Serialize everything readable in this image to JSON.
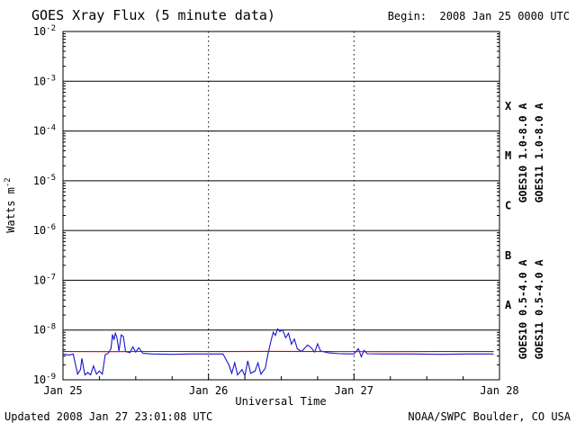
{
  "footer": {
    "updated": "Updated 2008 Jan 27 23:01:08 UTC",
    "source": "NOAA/SWPC Boulder, CO USA"
  },
  "chart_data": {
    "type": "line",
    "title": "GOES Xray Flux (5 minute data)",
    "begin_label": "Begin:  2008 Jan 25 0000 UTC",
    "xlabel": "Universal Time",
    "ylabel_base": "Watts m",
    "ylabel_exp": "-2",
    "x_range": [
      0,
      3
    ],
    "y_log_range": [
      -2,
      -9
    ],
    "x_ticks": [
      {
        "t": 0,
        "label": "Jan 25"
      },
      {
        "t": 1,
        "label": "Jan 26"
      },
      {
        "t": 2,
        "label": "Jan 27"
      },
      {
        "t": 3,
        "label": "Jan 28"
      }
    ],
    "y_ticks": [
      -2,
      -3,
      -4,
      -5,
      -6,
      -7,
      -8,
      -9
    ],
    "flare_classes": [
      {
        "label": "X",
        "log_center": -3.5
      },
      {
        "label": "M",
        "log_center": -4.5
      },
      {
        "label": "C",
        "log_center": -5.5
      },
      {
        "label": "B",
        "log_center": -6.5
      },
      {
        "label": "A",
        "log_center": -7.5
      }
    ],
    "grid": {
      "horizontal": "solid lines at each decade",
      "vertical": "dotted lines at day boundaries"
    },
    "series": [
      {
        "id": "goes10-long",
        "name": "GOES10 1.0-8.0 A",
        "color": "#1616c8",
        "points": [
          [
            0.0,
            3.3e-09
          ],
          [
            0.04,
            3.15e-09
          ],
          [
            0.07,
            3.3e-09
          ],
          [
            0.09,
            1.8e-09
          ],
          [
            0.1,
            1.3e-09
          ],
          [
            0.12,
            1.6e-09
          ],
          [
            0.13,
            2.7e-09
          ],
          [
            0.15,
            1.25e-09
          ],
          [
            0.17,
            1.4e-09
          ],
          [
            0.19,
            1.25e-09
          ],
          [
            0.21,
            1.9e-09
          ],
          [
            0.23,
            1.3e-09
          ],
          [
            0.25,
            1.5e-09
          ],
          [
            0.27,
            1.3e-09
          ],
          [
            0.29,
            3.2e-09
          ],
          [
            0.31,
            3.4e-09
          ],
          [
            0.33,
            4.2e-09
          ],
          [
            0.34,
            8.2e-09
          ],
          [
            0.35,
            6.3e-09
          ],
          [
            0.36,
            8.6e-09
          ],
          [
            0.37,
            7.2e-09
          ],
          [
            0.385,
            3.8e-09
          ],
          [
            0.4,
            8e-09
          ],
          [
            0.415,
            7.4e-09
          ],
          [
            0.43,
            3.7e-09
          ],
          [
            0.46,
            3.5e-09
          ],
          [
            0.48,
            4.6e-09
          ],
          [
            0.5,
            3.6e-09
          ],
          [
            0.52,
            4.4e-09
          ],
          [
            0.55,
            3.4e-09
          ],
          [
            0.62,
            3.3e-09
          ],
          [
            0.75,
            3.25e-09
          ],
          [
            0.88,
            3.3e-09
          ],
          [
            1.0,
            3.3e-09
          ],
          [
            1.1,
            3.3e-09
          ],
          [
            1.14,
            2e-09
          ],
          [
            1.16,
            1.35e-09
          ],
          [
            1.18,
            2.2e-09
          ],
          [
            1.2,
            1.25e-09
          ],
          [
            1.23,
            1.6e-09
          ],
          [
            1.25,
            1.2e-09
          ],
          [
            1.27,
            2.4e-09
          ],
          [
            1.29,
            1.35e-09
          ],
          [
            1.32,
            1.5e-09
          ],
          [
            1.34,
            2.2e-09
          ],
          [
            1.36,
            1.3e-09
          ],
          [
            1.39,
            1.7e-09
          ],
          [
            1.41,
            3.4e-09
          ],
          [
            1.43,
            6.2e-09
          ],
          [
            1.445,
            9e-09
          ],
          [
            1.46,
            7.8e-09
          ],
          [
            1.475,
            1.05e-08
          ],
          [
            1.49,
            9.4e-09
          ],
          [
            1.51,
            1e-08
          ],
          [
            1.53,
            7e-09
          ],
          [
            1.55,
            8.6e-09
          ],
          [
            1.57,
            5.2e-09
          ],
          [
            1.59,
            6.6e-09
          ],
          [
            1.61,
            4.2e-09
          ],
          [
            1.64,
            3.7e-09
          ],
          [
            1.68,
            5e-09
          ],
          [
            1.7,
            4.6e-09
          ],
          [
            1.73,
            3.6e-09
          ],
          [
            1.75,
            5.3e-09
          ],
          [
            1.77,
            3.8e-09
          ],
          [
            1.82,
            3.5e-09
          ],
          [
            1.9,
            3.35e-09
          ],
          [
            2.0,
            3.3e-09
          ],
          [
            2.03,
            4.2e-09
          ],
          [
            2.05,
            2.9e-09
          ],
          [
            2.07,
            3.9e-09
          ],
          [
            2.09,
            3.35e-09
          ],
          [
            2.2,
            3.3e-09
          ],
          [
            2.4,
            3.3e-09
          ],
          [
            2.6,
            3.25e-09
          ],
          [
            2.8,
            3.3e-09
          ],
          [
            2.96,
            3.3e-09
          ]
        ]
      },
      {
        "id": "goes11-long",
        "name": "GOES11 1.0-8.0 A",
        "color": "#d40000",
        "points": [
          [
            0.0,
            3.7e-09
          ],
          [
            0.3,
            3.68e-09
          ],
          [
            0.6,
            3.72e-09
          ],
          [
            1.0,
            3.7e-09
          ],
          [
            1.4,
            3.73e-09
          ],
          [
            1.8,
            3.7e-09
          ],
          [
            2.2,
            3.68e-09
          ],
          [
            2.6,
            3.7e-09
          ],
          [
            2.96,
            3.7e-09
          ]
        ]
      },
      {
        "id": "goes10-short",
        "name": "GOES10 0.5-4.0 A",
        "color": "#c9a800",
        "points": []
      },
      {
        "id": "goes11-short",
        "name": "GOES11 0.5-4.0 A",
        "color": "#3a3ae0",
        "points": []
      }
    ]
  }
}
